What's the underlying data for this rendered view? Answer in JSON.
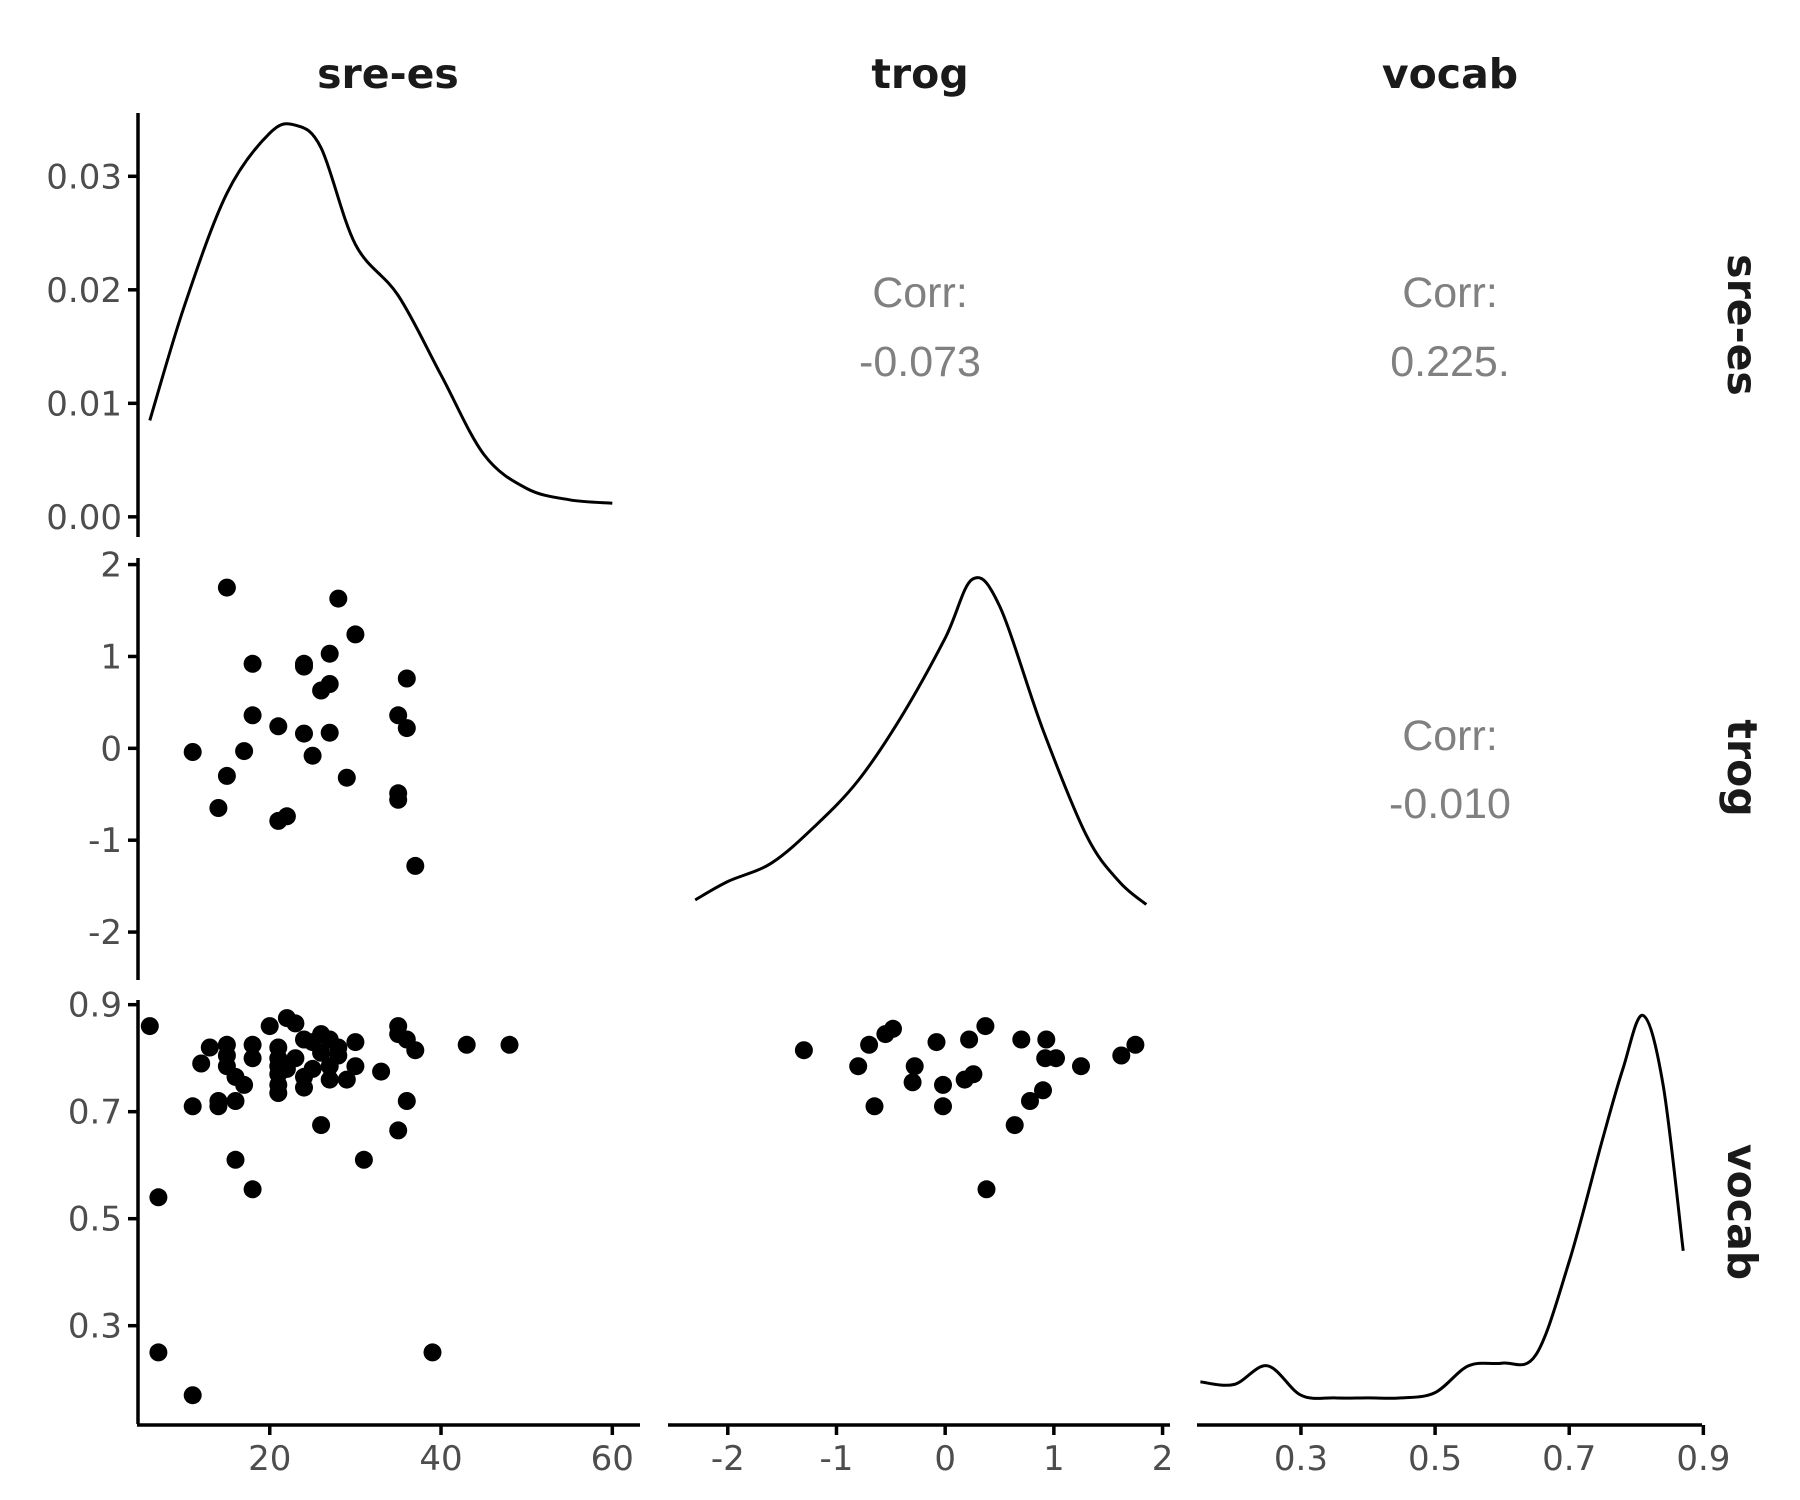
{
  "chart_data": {
    "type": "scatter",
    "variables": [
      "sre-es",
      "trog",
      "vocab"
    ],
    "axes": {
      "x": [
        {
          "var": "sre-es",
          "lim": [
            4.5,
            63
          ],
          "ticks": [
            20,
            40,
            60
          ],
          "tick_labels": [
            "20",
            "40",
            "60"
          ]
        },
        {
          "var": "trog",
          "lim": [
            -2.55,
            2.05
          ],
          "ticks": [
            -2,
            -1,
            0,
            1,
            2
          ],
          "tick_labels": [
            "-2",
            "-1",
            "0",
            "1",
            "2"
          ]
        },
        {
          "var": "vocab",
          "lim": [
            0.145,
            0.895
          ],
          "ticks": [
            0.3,
            0.5,
            0.7,
            0.9
          ],
          "tick_labels": [
            "0.3",
            "0.5",
            "0.7",
            "0.9"
          ]
        }
      ],
      "y": [
        {
          "var": "sre-es",
          "lim": [
            -0.0016,
            0.0354
          ],
          "ticks": [
            0,
            0.01,
            0.02,
            0.03
          ],
          "tick_labels": [
            "0.00",
            "0.01",
            "0.02",
            "0.03"
          ]
        },
        {
          "var": "trog",
          "lim": [
            -2.5,
            2.05
          ],
          "ticks": [
            -2,
            -1,
            0,
            1,
            2
          ],
          "tick_labels": [
            "-2",
            "-1",
            "0",
            "1",
            "2"
          ]
        },
        {
          "var": "vocab",
          "lim": [
            0.12,
            0.905
          ],
          "ticks": [
            0.3,
            0.5,
            0.7,
            0.9
          ],
          "tick_labels": [
            "0.3",
            "0.5",
            "0.7",
            "0.9"
          ]
        }
      ]
    },
    "correlations": [
      {
        "row": "sre-es",
        "col": "trog",
        "label": "Corr:",
        "value": "-0.073"
      },
      {
        "row": "sre-es",
        "col": "vocab",
        "label": "Corr:",
        "value": "0.225."
      },
      {
        "row": "trog",
        "col": "vocab",
        "label": "Corr:",
        "value": "-0.010"
      }
    ],
    "densities": [
      {
        "var": "sre-es",
        "x": [
          6,
          10,
          15,
          20,
          23,
          26,
          30,
          35,
          40,
          45,
          50,
          55,
          60
        ],
        "y": [
          0.0085,
          0.0185,
          0.0285,
          0.0338,
          0.0345,
          0.0325,
          0.024,
          0.0195,
          0.0125,
          0.0055,
          0.0025,
          0.0015,
          0.0012
        ]
      },
      {
        "var": "trog",
        "x": [
          -2.3,
          -2.0,
          -1.6,
          -1.2,
          -0.8,
          -0.4,
          0.0,
          0.25,
          0.5,
          0.9,
          1.3,
          1.6,
          1.85
        ],
        "y": [
          -1.65,
          -1.45,
          -1.25,
          -0.85,
          -0.35,
          0.35,
          1.2,
          1.84,
          1.55,
          0.2,
          -0.95,
          -1.45,
          -1.7
        ]
      },
      {
        "var": "vocab",
        "x": [
          0.15,
          0.2,
          0.25,
          0.3,
          0.35,
          0.4,
          0.45,
          0.5,
          0.55,
          0.6,
          0.65,
          0.7,
          0.75,
          0.78,
          0.81,
          0.84,
          0.87
        ],
        "y": [
          0.195,
          0.19,
          0.225,
          0.17,
          0.165,
          0.165,
          0.165,
          0.175,
          0.225,
          0.23,
          0.245,
          0.42,
          0.65,
          0.78,
          0.88,
          0.75,
          0.44
        ]
      }
    ],
    "scatter": [
      {
        "x_var": "sre-es",
        "y_var": "trog",
        "points": [
          [
            15,
            1.75
          ],
          [
            28,
            1.63
          ],
          [
            30,
            1.24
          ],
          [
            27,
            1.03
          ],
          [
            18,
            0.92
          ],
          [
            24,
            0.92
          ],
          [
            24,
            0.89
          ],
          [
            36,
            0.76
          ],
          [
            27,
            0.7
          ],
          [
            26,
            0.63
          ],
          [
            18,
            0.36
          ],
          [
            35,
            0.36
          ],
          [
            21,
            0.24
          ],
          [
            36,
            0.22
          ],
          [
            24,
            0.16
          ],
          [
            27,
            0.17
          ],
          [
            11,
            -0.04
          ],
          [
            17,
            -0.03
          ],
          [
            25,
            -0.08
          ],
          [
            15,
            -0.3
          ],
          [
            29,
            -0.32
          ],
          [
            35,
            -0.49
          ],
          [
            35,
            -0.56
          ],
          [
            14,
            -0.65
          ],
          [
            22,
            -0.74
          ],
          [
            21,
            -0.79
          ],
          [
            37,
            -1.28
          ]
        ]
      },
      {
        "x_var": "sre-es",
        "y_var": "vocab",
        "points": [
          [
            6,
            0.86
          ],
          [
            22,
            0.875
          ],
          [
            23,
            0.865
          ],
          [
            20,
            0.86
          ],
          [
            35,
            0.86
          ],
          [
            26,
            0.845
          ],
          [
            35,
            0.845
          ],
          [
            24,
            0.835
          ],
          [
            27,
            0.835
          ],
          [
            13,
            0.82
          ],
          [
            15,
            0.825
          ],
          [
            18,
            0.825
          ],
          [
            21,
            0.82
          ],
          [
            25,
            0.83
          ],
          [
            28,
            0.82
          ],
          [
            30,
            0.83
          ],
          [
            36,
            0.835
          ],
          [
            43,
            0.825
          ],
          [
            48,
            0.825
          ],
          [
            37,
            0.815
          ],
          [
            15,
            0.805
          ],
          [
            18,
            0.8
          ],
          [
            21,
            0.8
          ],
          [
            23,
            0.8
          ],
          [
            26,
            0.81
          ],
          [
            28,
            0.805
          ],
          [
            12,
            0.79
          ],
          [
            15,
            0.785
          ],
          [
            21,
            0.785
          ],
          [
            22,
            0.78
          ],
          [
            25,
            0.78
          ],
          [
            27,
            0.785
          ],
          [
            30,
            0.785
          ],
          [
            33,
            0.775
          ],
          [
            16,
            0.765
          ],
          [
            21,
            0.77
          ],
          [
            24,
            0.765
          ],
          [
            27,
            0.76
          ],
          [
            29,
            0.76
          ],
          [
            17,
            0.75
          ],
          [
            21,
            0.75
          ],
          [
            24,
            0.745
          ],
          [
            21,
            0.735
          ],
          [
            14,
            0.72
          ],
          [
            16,
            0.72
          ],
          [
            36,
            0.72
          ],
          [
            11,
            0.71
          ],
          [
            14,
            0.71
          ],
          [
            26,
            0.675
          ],
          [
            35,
            0.665
          ],
          [
            16,
            0.61
          ],
          [
            31,
            0.61
          ],
          [
            18,
            0.555
          ],
          [
            7,
            0.54
          ],
          [
            7,
            0.25
          ],
          [
            39,
            0.25
          ],
          [
            11,
            0.17
          ]
        ]
      },
      {
        "x_var": "trog",
        "y_var": "vocab",
        "points": [
          [
            -1.3,
            0.815
          ],
          [
            -0.7,
            0.825
          ],
          [
            -0.55,
            0.845
          ],
          [
            -0.48,
            0.855
          ],
          [
            -0.08,
            0.83
          ],
          [
            0.22,
            0.835
          ],
          [
            0.37,
            0.86
          ],
          [
            0.7,
            0.835
          ],
          [
            0.93,
            0.835
          ],
          [
            -0.8,
            0.785
          ],
          [
            -0.28,
            0.785
          ],
          [
            0.92,
            0.8
          ],
          [
            1.02,
            0.8
          ],
          [
            1.25,
            0.785
          ],
          [
            1.62,
            0.805
          ],
          [
            1.75,
            0.825
          ],
          [
            -0.3,
            0.755
          ],
          [
            -0.02,
            0.75
          ],
          [
            0.18,
            0.76
          ],
          [
            0.26,
            0.77
          ],
          [
            0.78,
            0.72
          ],
          [
            0.9,
            0.74
          ],
          [
            -0.65,
            0.71
          ],
          [
            -0.02,
            0.71
          ],
          [
            0.64,
            0.675
          ],
          [
            0.38,
            0.555
          ]
        ]
      }
    ]
  }
}
